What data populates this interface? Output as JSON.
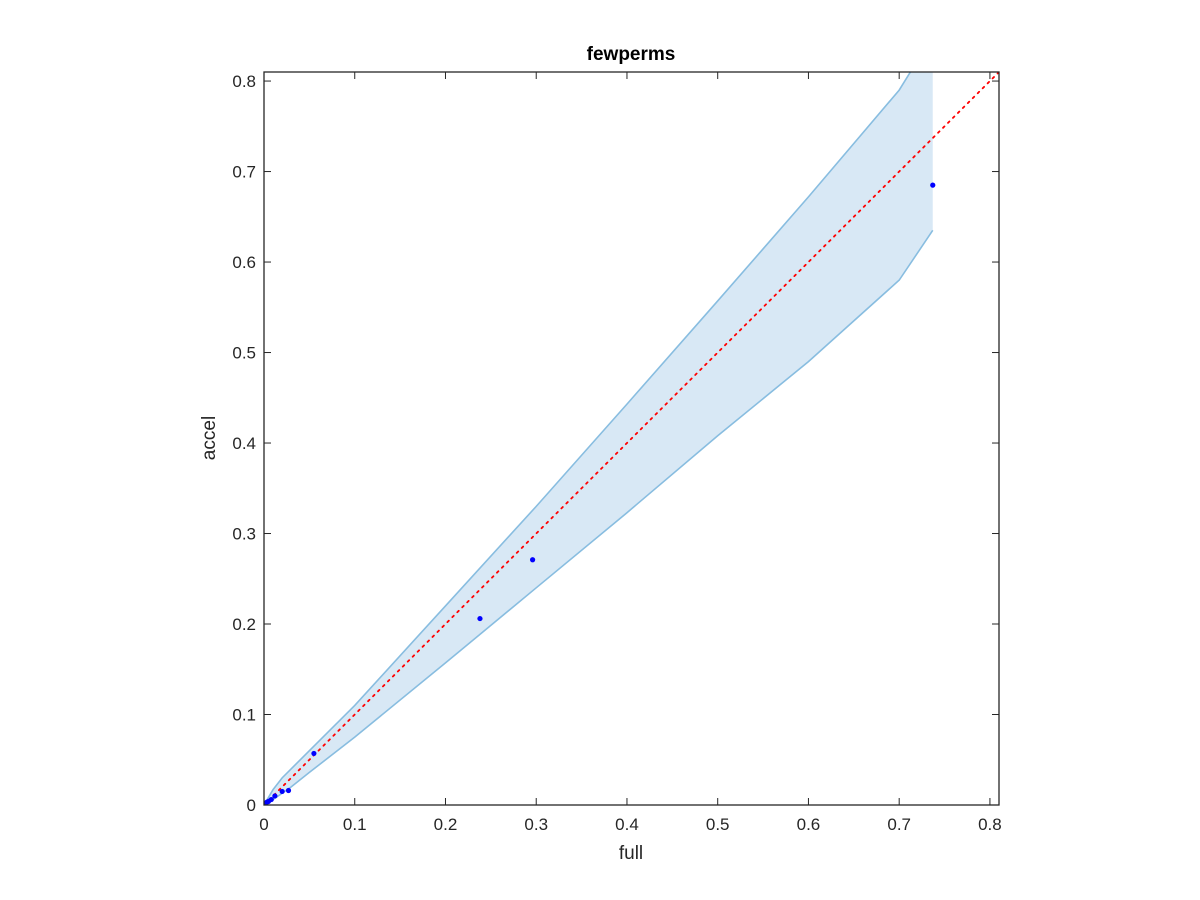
{
  "chart_data": {
    "type": "scatter",
    "title": "fewperms",
    "xlabel": "full",
    "ylabel": "accel",
    "xlim": [
      0,
      0.81
    ],
    "ylim": [
      0,
      0.81
    ],
    "xticks": [
      0,
      0.1,
      0.2,
      0.3,
      0.4,
      0.5,
      0.6,
      0.7,
      0.8
    ],
    "yticks": [
      0,
      0.1,
      0.2,
      0.3,
      0.4,
      0.5,
      0.6,
      0.7,
      0.8
    ],
    "xtick_labels": [
      "0",
      "0.1",
      "0.2",
      "0.3",
      "0.4",
      "0.5",
      "0.6",
      "0.7",
      "0.8"
    ],
    "ytick_labels": [
      "0",
      "0.1",
      "0.2",
      "0.3",
      "0.4",
      "0.5",
      "0.6",
      "0.7",
      "0.8"
    ],
    "grid": false,
    "points": {
      "x": [
        0.001,
        0.002,
        0.003,
        0.005,
        0.008,
        0.012,
        0.02,
        0.027,
        0.055,
        0.238,
        0.296,
        0.737
      ],
      "y": [
        0.001,
        0.002,
        0.003,
        0.004,
        0.006,
        0.01,
        0.015,
        0.016,
        0.057,
        0.206,
        0.271,
        0.685
      ],
      "color": "#0000ff"
    },
    "band": {
      "x": [
        0,
        0.01,
        0.02,
        0.03,
        0.05,
        0.1,
        0.2,
        0.3,
        0.4,
        0.5,
        0.6,
        0.7,
        0.737
      ],
      "upper": [
        0,
        0.017,
        0.03,
        0.04,
        0.06,
        0.11,
        0.22,
        0.33,
        0.443,
        0.557,
        0.672,
        0.79,
        0.85
      ],
      "lower": [
        0,
        0.006,
        0.013,
        0.02,
        0.036,
        0.075,
        0.157,
        0.24,
        0.323,
        0.408,
        0.49,
        0.58,
        0.635
      ],
      "fill": "#d8e8f5",
      "edge": "#88bde0"
    },
    "reference_line": {
      "x": [
        0,
        0.81
      ],
      "y": [
        0,
        0.81
      ],
      "style": "dotted",
      "color": "#ff0000"
    }
  }
}
